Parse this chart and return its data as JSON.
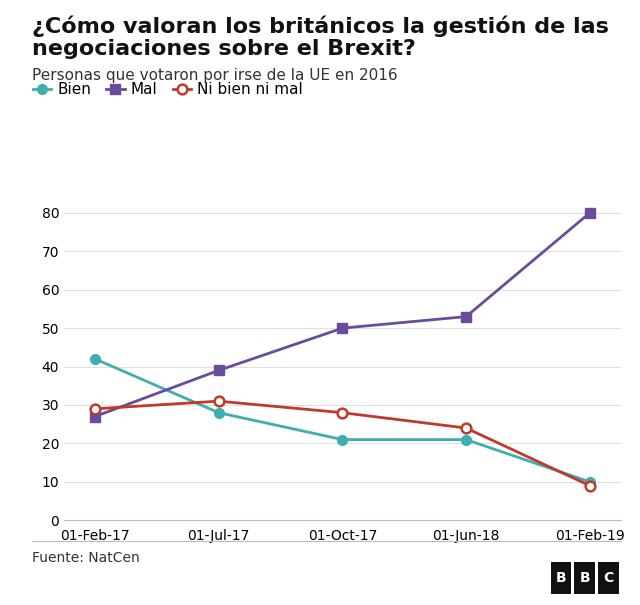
{
  "title_line1": "¿Cómo valoran los británicos la gestión de las",
  "title_line2": "negociaciones sobre el Brexit?",
  "subtitle": "Personas que votaron por irse de la UE en 2016",
  "source": "Fuente: NatCen",
  "x_labels": [
    "01-Feb-17",
    "01-Jul-17",
    "01-Oct-17",
    "01-Jun-18",
    "01-Feb-19"
  ],
  "series_order": [
    "Bien",
    "Mal",
    "Ni bien ni mal"
  ],
  "series": {
    "Bien": {
      "values": [
        42,
        28,
        21,
        21,
        10
      ],
      "color": "#3eaeaf",
      "marker": "o",
      "marker_filled": true,
      "linewidth": 2
    },
    "Mal": {
      "values": [
        27,
        39,
        50,
        53,
        80
      ],
      "color": "#6a4c9c",
      "marker": "s",
      "marker_filled": true,
      "linewidth": 2
    },
    "Ni bien ni mal": {
      "values": [
        29,
        31,
        28,
        24,
        9
      ],
      "color": "#c0392b",
      "marker": "o",
      "marker_filled": false,
      "linewidth": 2
    }
  },
  "ylim": [
    0,
    85
  ],
  "yticks": [
    0,
    10,
    20,
    30,
    40,
    50,
    60,
    70,
    80
  ],
  "background_color": "#ffffff",
  "title_fontsize": 16,
  "subtitle_fontsize": 11,
  "tick_fontsize": 10,
  "legend_fontsize": 11,
  "source_fontsize": 10
}
